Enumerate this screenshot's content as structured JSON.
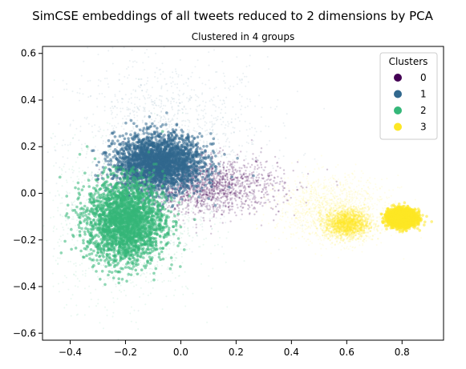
{
  "chart_data": {
    "type": "scatter",
    "title": "SimCSE embeddings of all tweets reduced to 2 dimensions by PCA",
    "subtitle": "Clustered in 4 groups",
    "xlabel": "",
    "ylabel": "",
    "xlim": [
      -0.5,
      0.95
    ],
    "ylim": [
      -0.63,
      0.63
    ],
    "xticks": [
      -0.4,
      -0.2,
      0.0,
      0.2,
      0.4,
      0.6,
      0.8
    ],
    "yticks": [
      -0.6,
      -0.4,
      -0.2,
      0.0,
      0.2,
      0.4,
      0.6
    ],
    "xtick_labels": [
      "−0.4",
      "−0.2",
      "0.0",
      "0.2",
      "0.4",
      "0.6",
      "0.8"
    ],
    "ytick_labels": [
      "−0.6",
      "−0.4",
      "−0.2",
      "0.0",
      "0.2",
      "0.4",
      "0.6"
    ],
    "grid": false,
    "legend": {
      "title": "Clusters",
      "placement": "top-right",
      "entries": [
        {
          "label": "0",
          "color": "#440154"
        },
        {
          "label": "1",
          "color": "#31688e"
        },
        {
          "label": "2",
          "color": "#35b779"
        },
        {
          "label": "3",
          "color": "#fde725"
        }
      ]
    },
    "series": [
      {
        "cluster": "0",
        "color": "#440154",
        "regions": [
          {
            "center": [
              0.1,
              0.03
            ],
            "spread": [
              0.13,
              0.06
            ],
            "density": "medium"
          }
        ]
      },
      {
        "cluster": "1",
        "color": "#31688e",
        "regions": [
          {
            "center": [
              -0.08,
              0.13
            ],
            "spread": [
              0.08,
              0.06
            ],
            "density": "high"
          },
          {
            "center": [
              -0.05,
              0.22
            ],
            "spread": [
              0.18,
              0.18
            ],
            "density": "low"
          }
        ]
      },
      {
        "cluster": "2",
        "color": "#35b779",
        "regions": [
          {
            "center": [
              -0.2,
              -0.12
            ],
            "spread": [
              0.07,
              0.09
            ],
            "density": "high"
          },
          {
            "center": [
              -0.2,
              -0.12
            ],
            "spread": [
              0.13,
              0.17
            ],
            "density": "low"
          }
        ]
      },
      {
        "cluster": "3",
        "color": "#fde725",
        "regions": [
          {
            "center": [
              0.8,
              -0.105
            ],
            "spread": [
              0.025,
              0.018
            ],
            "density": "high"
          },
          {
            "center": [
              0.6,
              -0.13
            ],
            "spread": [
              0.04,
              0.03
            ],
            "density": "medium"
          },
          {
            "center": [
              0.55,
              -0.07
            ],
            "spread": [
              0.1,
              0.07
            ],
            "density": "low"
          }
        ]
      }
    ]
  }
}
